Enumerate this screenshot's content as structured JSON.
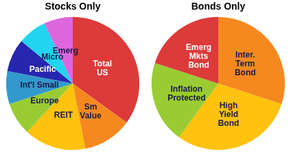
{
  "chart_data": [
    {
      "type": "pie",
      "title": "Stocks Only",
      "categories": [
        "Total US",
        "Sm Value",
        "REIT",
        "Europe",
        "Int'l Small",
        "Pacific",
        "Micro",
        "Emerg"
      ],
      "values": [
        35,
        12,
        15,
        8,
        8,
        8,
        7,
        7
      ],
      "colors": [
        "#dd3a3a",
        "#f5891f",
        "#ffc20e",
        "#99cc33",
        "#3399cc",
        "#2626b0",
        "#22d4f0",
        "#dd66dd"
      ]
    },
    {
      "type": "pie",
      "title": "Bonds Only",
      "categories": [
        "Inter. Term Bond",
        "High Yield Bond",
        "Inflation Protected",
        "Emerg Mkts Bond"
      ],
      "values": [
        30,
        30,
        20,
        20
      ],
      "colors": [
        "#f5891f",
        "#ffc20e",
        "#99cc33",
        "#dd3a3a"
      ]
    }
  ]
}
